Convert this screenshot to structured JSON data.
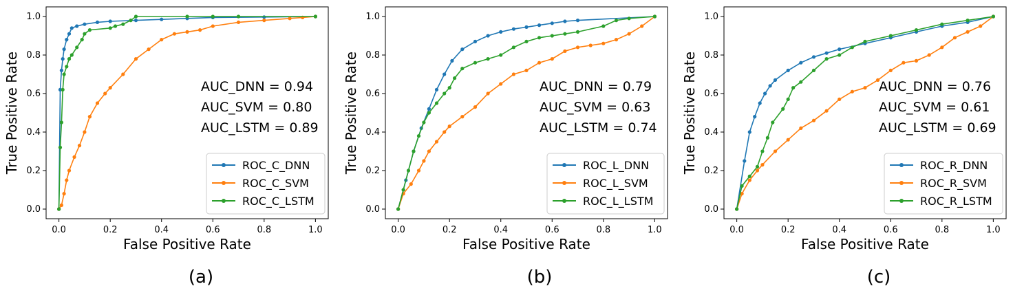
{
  "chart_data": [
    {
      "type": "line",
      "panel_label": "(a)",
      "xlabel": "False Positive Rate",
      "ylabel": "True Positive Rate",
      "xlim": [
        -0.05,
        1.05
      ],
      "ylim": [
        -0.05,
        1.05
      ],
      "xticks": [
        "0.0",
        "0.2",
        "0.4",
        "0.6",
        "0.8",
        "1.0"
      ],
      "yticks": [
        "0.0",
        "0.2",
        "0.4",
        "0.6",
        "0.8",
        "1.0"
      ],
      "legend_position": "lower-right",
      "annotations": [
        "AUC_DNN = 0.94",
        "AUC_SVM = 0.80",
        "AUC_LSTM = 0.89"
      ],
      "series": [
        {
          "name": "ROC_C_DNN",
          "color": "#1f77b4",
          "x": [
            0.0,
            0.005,
            0.01,
            0.015,
            0.02,
            0.03,
            0.04,
            0.05,
            0.07,
            0.1,
            0.15,
            0.2,
            0.3,
            0.4,
            0.5,
            0.6,
            0.8,
            1.0
          ],
          "y": [
            0.0,
            0.62,
            0.72,
            0.78,
            0.83,
            0.88,
            0.91,
            0.94,
            0.95,
            0.96,
            0.97,
            0.975,
            0.98,
            0.985,
            0.99,
            0.995,
            0.997,
            1.0
          ]
        },
        {
          "name": "ROC_C_SVM",
          "color": "#ff7f0e",
          "x": [
            0.0,
            0.01,
            0.02,
            0.03,
            0.04,
            0.06,
            0.08,
            0.1,
            0.12,
            0.15,
            0.18,
            0.2,
            0.25,
            0.3,
            0.35,
            0.4,
            0.45,
            0.5,
            0.55,
            0.6,
            0.7,
            0.8,
            0.9,
            0.95,
            1.0
          ],
          "y": [
            0.0,
            0.02,
            0.08,
            0.15,
            0.2,
            0.27,
            0.33,
            0.4,
            0.48,
            0.55,
            0.6,
            0.63,
            0.7,
            0.78,
            0.83,
            0.88,
            0.91,
            0.92,
            0.93,
            0.95,
            0.97,
            0.98,
            0.99,
            0.995,
            1.0
          ]
        },
        {
          "name": "ROC_C_LSTM",
          "color": "#2ca02c",
          "x": [
            0.0,
            0.005,
            0.01,
            0.015,
            0.02,
            0.03,
            0.04,
            0.05,
            0.07,
            0.09,
            0.1,
            0.12,
            0.2,
            0.22,
            0.25,
            0.28,
            0.3,
            0.5,
            0.6,
            0.7,
            1.0
          ],
          "y": [
            0.0,
            0.32,
            0.45,
            0.62,
            0.7,
            0.74,
            0.78,
            0.8,
            0.84,
            0.88,
            0.91,
            0.93,
            0.94,
            0.95,
            0.96,
            0.98,
            1.0,
            1.0,
            1.0,
            1.0,
            1.0
          ]
        }
      ]
    },
    {
      "type": "line",
      "panel_label": "(b)",
      "xlabel": "False Positive Rate",
      "ylabel": "True Positive Rate",
      "xlim": [
        -0.05,
        1.05
      ],
      "ylim": [
        -0.05,
        1.05
      ],
      "xticks": [
        "0.0",
        "0.2",
        "0.4",
        "0.6",
        "0.8",
        "1.0"
      ],
      "yticks": [
        "0.0",
        "0.2",
        "0.4",
        "0.6",
        "0.8",
        "1.0"
      ],
      "legend_position": "lower-right",
      "annotations": [
        "AUC_DNN = 0.79",
        "AUC_SVM = 0.63",
        "AUC_LSTM = 0.74"
      ],
      "series": [
        {
          "name": "ROC_L_DNN",
          "color": "#1f77b4",
          "x": [
            0.0,
            0.03,
            0.06,
            0.09,
            0.12,
            0.15,
            0.18,
            0.21,
            0.25,
            0.3,
            0.35,
            0.4,
            0.45,
            0.5,
            0.55,
            0.6,
            0.65,
            0.7,
            1.0
          ],
          "y": [
            0.0,
            0.15,
            0.3,
            0.42,
            0.52,
            0.62,
            0.7,
            0.77,
            0.83,
            0.87,
            0.9,
            0.92,
            0.935,
            0.945,
            0.955,
            0.965,
            0.975,
            0.98,
            1.0
          ]
        },
        {
          "name": "ROC_L_SVM",
          "color": "#ff7f0e",
          "x": [
            0.0,
            0.02,
            0.05,
            0.08,
            0.1,
            0.12,
            0.15,
            0.18,
            0.2,
            0.25,
            0.3,
            0.35,
            0.4,
            0.45,
            0.5,
            0.55,
            0.6,
            0.65,
            0.7,
            0.75,
            0.8,
            0.85,
            0.9,
            0.95,
            1.0
          ],
          "y": [
            0.0,
            0.08,
            0.13,
            0.2,
            0.25,
            0.3,
            0.35,
            0.4,
            0.43,
            0.48,
            0.53,
            0.6,
            0.65,
            0.7,
            0.72,
            0.76,
            0.78,
            0.82,
            0.84,
            0.85,
            0.86,
            0.88,
            0.91,
            0.95,
            1.0
          ]
        },
        {
          "name": "ROC_L_LSTM",
          "color": "#2ca02c",
          "x": [
            0.0,
            0.02,
            0.04,
            0.06,
            0.08,
            0.1,
            0.12,
            0.15,
            0.18,
            0.2,
            0.22,
            0.25,
            0.3,
            0.35,
            0.4,
            0.45,
            0.5,
            0.55,
            0.6,
            0.65,
            0.7,
            0.8,
            0.85,
            0.9,
            1.0
          ],
          "y": [
            0.0,
            0.1,
            0.2,
            0.3,
            0.38,
            0.45,
            0.5,
            0.55,
            0.6,
            0.63,
            0.68,
            0.73,
            0.76,
            0.78,
            0.8,
            0.84,
            0.87,
            0.89,
            0.9,
            0.91,
            0.92,
            0.95,
            0.98,
            0.99,
            1.0
          ]
        }
      ]
    },
    {
      "type": "line",
      "panel_label": "(c)",
      "xlabel": "False Positive Rate",
      "ylabel": "True Positive Rate",
      "xlim": [
        -0.05,
        1.05
      ],
      "ylim": [
        -0.05,
        1.05
      ],
      "xticks": [
        "0.0",
        "0.2",
        "0.4",
        "0.6",
        "0.8",
        "1.0"
      ],
      "yticks": [
        "0.0",
        "0.2",
        "0.4",
        "0.6",
        "0.8",
        "1.0"
      ],
      "legend_position": "lower-right",
      "annotations": [
        "AUC_DNN = 0.76",
        "AUC_SVM = 0.61",
        "AUC_LSTM = 0.69"
      ],
      "series": [
        {
          "name": "ROC_R_DNN",
          "color": "#1f77b4",
          "x": [
            0.0,
            0.03,
            0.05,
            0.07,
            0.09,
            0.11,
            0.13,
            0.15,
            0.2,
            0.25,
            0.3,
            0.35,
            0.4,
            0.5,
            0.6,
            0.7,
            0.8,
            0.9,
            1.0
          ],
          "y": [
            0.0,
            0.25,
            0.4,
            0.48,
            0.55,
            0.6,
            0.64,
            0.67,
            0.72,
            0.76,
            0.79,
            0.81,
            0.83,
            0.86,
            0.89,
            0.92,
            0.95,
            0.97,
            1.0
          ]
        },
        {
          "name": "ROC_R_SVM",
          "color": "#ff7f0e",
          "x": [
            0.0,
            0.02,
            0.05,
            0.08,
            0.1,
            0.15,
            0.2,
            0.25,
            0.3,
            0.35,
            0.4,
            0.45,
            0.5,
            0.55,
            0.6,
            0.65,
            0.7,
            0.75,
            0.8,
            0.85,
            0.9,
            0.95,
            1.0
          ],
          "y": [
            0.0,
            0.08,
            0.15,
            0.2,
            0.23,
            0.3,
            0.36,
            0.42,
            0.46,
            0.51,
            0.57,
            0.61,
            0.63,
            0.67,
            0.72,
            0.76,
            0.77,
            0.8,
            0.84,
            0.89,
            0.92,
            0.95,
            1.0
          ]
        },
        {
          "name": "ROC_R_LSTM",
          "color": "#2ca02c",
          "x": [
            0.0,
            0.02,
            0.05,
            0.08,
            0.1,
            0.12,
            0.14,
            0.18,
            0.2,
            0.22,
            0.25,
            0.3,
            0.35,
            0.4,
            0.45,
            0.5,
            0.6,
            0.7,
            0.8,
            0.9,
            1.0
          ],
          "y": [
            0.0,
            0.12,
            0.17,
            0.22,
            0.3,
            0.37,
            0.45,
            0.52,
            0.57,
            0.63,
            0.66,
            0.72,
            0.78,
            0.8,
            0.84,
            0.87,
            0.9,
            0.93,
            0.96,
            0.98,
            1.0
          ]
        }
      ]
    }
  ]
}
